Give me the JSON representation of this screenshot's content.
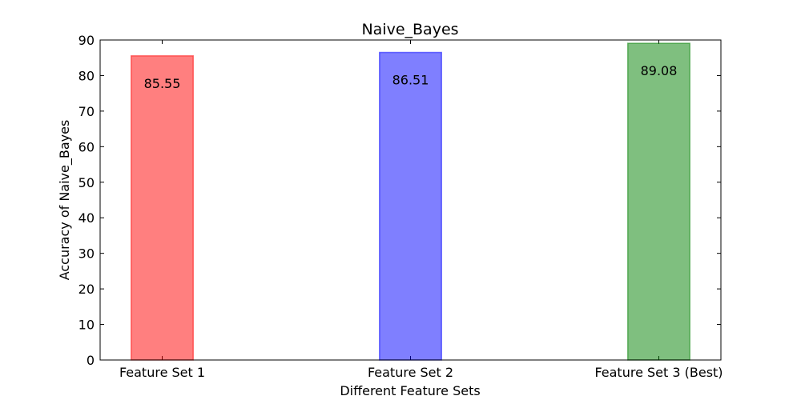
{
  "chart_data": {
    "type": "bar",
    "title": "Naive_Bayes",
    "xlabel": "Different Feature Sets",
    "ylabel": "Accuracy of Naive_Bayes",
    "categories": [
      "Feature Set 1",
      "Feature Set 2",
      "Feature Set 3 (Best)"
    ],
    "values": [
      85.55,
      86.51,
      89.08
    ],
    "value_labels": [
      "85.55",
      "86.51",
      "89.08"
    ],
    "colors": [
      "#ff0000",
      "#0000ff",
      "#008000"
    ],
    "bar_opacity": 0.5,
    "ylim": [
      0,
      90
    ],
    "yticks": [
      0,
      10,
      20,
      30,
      40,
      50,
      60,
      70,
      80,
      90
    ],
    "grid": false,
    "legend": "none"
  }
}
